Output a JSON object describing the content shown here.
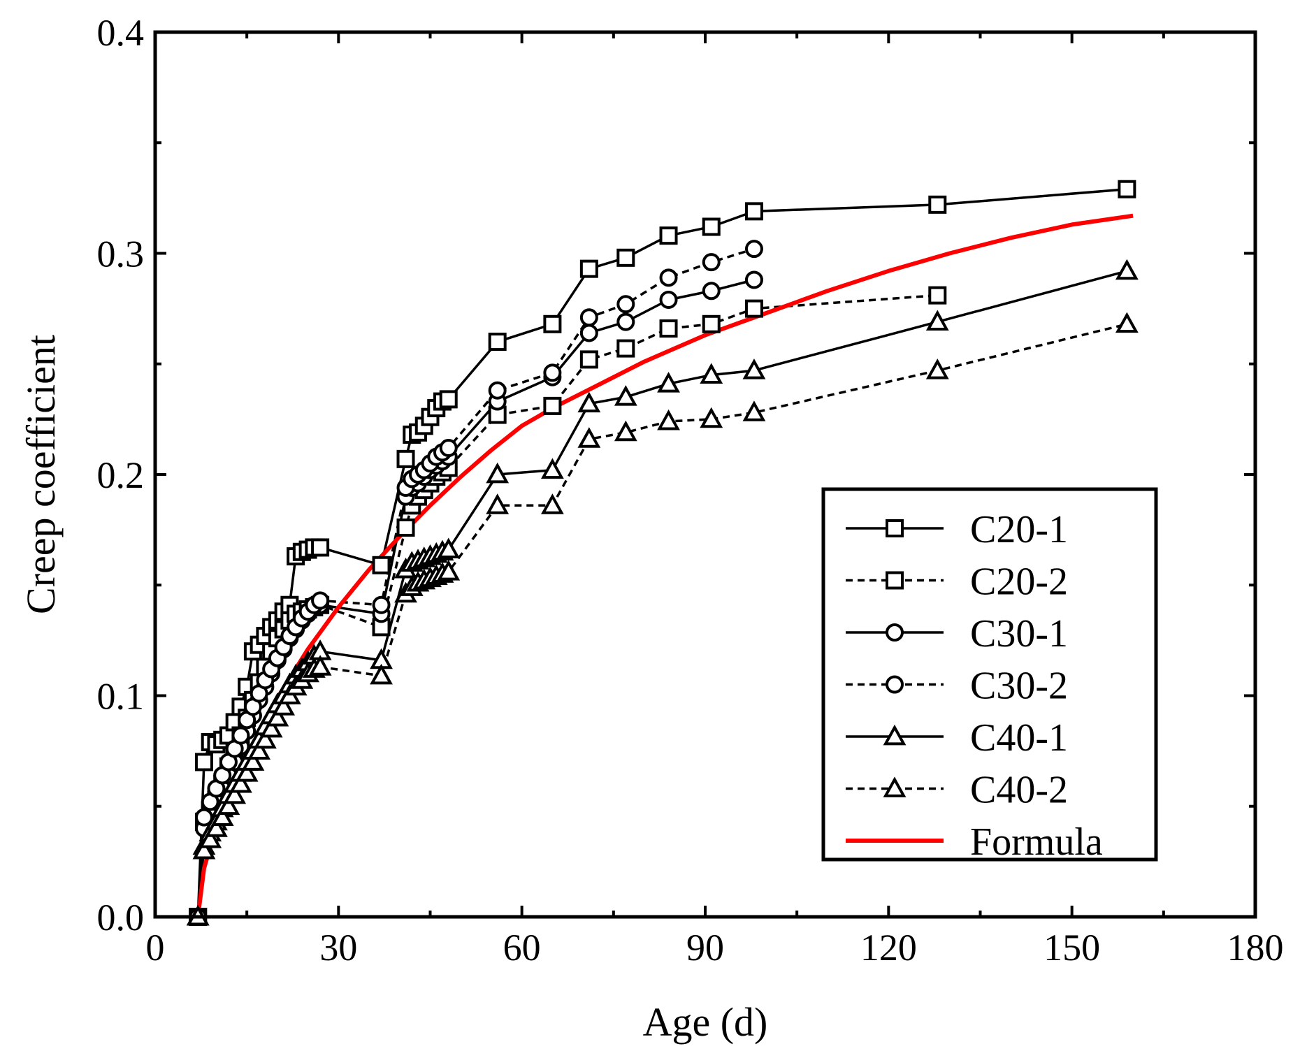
{
  "chart_data": {
    "type": "line",
    "title": "",
    "xlabel": "Age (d)",
    "ylabel": "Creep coefficient",
    "xlim": [
      0,
      180
    ],
    "ylim": [
      0,
      0.4
    ],
    "xticks": [
      0,
      30,
      60,
      90,
      120,
      150,
      180
    ],
    "xtick_labels": [
      "0",
      "30",
      "60",
      "90",
      "120",
      "150",
      "180"
    ],
    "yticks": [
      0,
      0.1,
      0.2,
      0.3,
      0.4
    ],
    "ytick_labels": [
      "0.0",
      "0.1",
      "0.2",
      "0.3",
      "0.4"
    ],
    "grid": false,
    "legend_position": "lower-right",
    "series": [
      {
        "name": "C20-1",
        "marker": "square",
        "line": "solid",
        "color": "#000000",
        "x": [
          7,
          8,
          9,
          10,
          11,
          12,
          13,
          14,
          15,
          16,
          17,
          18,
          19,
          20,
          21,
          22,
          23,
          24,
          25,
          26,
          27,
          37,
          41,
          42,
          43,
          44,
          45,
          46,
          47,
          48,
          56,
          65,
          71,
          77,
          84,
          91,
          98,
          128,
          159
        ],
        "y": [
          0,
          0.07,
          0.079,
          0.078,
          0.08,
          0.082,
          0.088,
          0.095,
          0.104,
          0.12,
          0.123,
          0.127,
          0.131,
          0.134,
          0.138,
          0.141,
          0.163,
          0.165,
          0.166,
          0.167,
          0.167,
          0.159,
          0.207,
          0.218,
          0.219,
          0.222,
          0.226,
          0.23,
          0.233,
          0.234,
          0.26,
          0.268,
          0.293,
          0.298,
          0.308,
          0.312,
          0.319,
          0.322,
          0.329
        ]
      },
      {
        "name": "C20-2",
        "marker": "square",
        "line": "dashed",
        "color": "#000000",
        "x": [
          7,
          8,
          9,
          10,
          11,
          12,
          13,
          14,
          15,
          16,
          17,
          18,
          19,
          20,
          21,
          22,
          23,
          24,
          25,
          26,
          27,
          37,
          41,
          42,
          43,
          44,
          45,
          46,
          47,
          48,
          56,
          65,
          71,
          77,
          84,
          91,
          98,
          128
        ],
        "y": [
          0,
          0.043,
          0.048,
          0.053,
          0.06,
          0.068,
          0.075,
          0.082,
          0.09,
          0.098,
          0.106,
          0.113,
          0.12,
          0.126,
          0.13,
          0.134,
          0.137,
          0.138,
          0.139,
          0.14,
          0.141,
          0.131,
          0.176,
          0.186,
          0.19,
          0.193,
          0.196,
          0.199,
          0.201,
          0.203,
          0.227,
          0.231,
          0.252,
          0.257,
          0.266,
          0.268,
          0.275,
          0.281
        ]
      },
      {
        "name": "C30-1",
        "marker": "circle",
        "line": "solid",
        "color": "#000000",
        "x": [
          7,
          8,
          9,
          10,
          11,
          12,
          13,
          14,
          15,
          16,
          17,
          18,
          19,
          20,
          21,
          22,
          23,
          24,
          25,
          26,
          27,
          37,
          41,
          42,
          43,
          44,
          45,
          46,
          47,
          48,
          56,
          65,
          71,
          77,
          84,
          91,
          98
        ],
        "y": [
          0,
          0.04,
          0.046,
          0.052,
          0.058,
          0.064,
          0.07,
          0.077,
          0.084,
          0.091,
          0.098,
          0.104,
          0.11,
          0.116,
          0.121,
          0.126,
          0.13,
          0.134,
          0.137,
          0.14,
          0.141,
          0.137,
          0.19,
          0.194,
          0.196,
          0.199,
          0.202,
          0.204,
          0.206,
          0.208,
          0.233,
          0.244,
          0.264,
          0.269,
          0.279,
          0.283,
          0.288
        ]
      },
      {
        "name": "C30-2",
        "marker": "circle",
        "line": "dashed",
        "color": "#000000",
        "x": [
          7,
          8,
          9,
          10,
          11,
          12,
          13,
          14,
          15,
          16,
          17,
          18,
          19,
          20,
          21,
          22,
          23,
          24,
          25,
          26,
          27,
          37,
          41,
          42,
          43,
          44,
          45,
          46,
          47,
          48,
          56,
          65,
          71,
          77,
          84,
          91,
          98
        ],
        "y": [
          0,
          0.045,
          0.052,
          0.058,
          0.064,
          0.07,
          0.076,
          0.082,
          0.089,
          0.095,
          0.101,
          0.107,
          0.112,
          0.117,
          0.122,
          0.127,
          0.131,
          0.135,
          0.138,
          0.141,
          0.143,
          0.141,
          0.194,
          0.198,
          0.2,
          0.202,
          0.205,
          0.208,
          0.21,
          0.212,
          0.238,
          0.246,
          0.271,
          0.277,
          0.289,
          0.296,
          0.302
        ]
      },
      {
        "name": "C40-1",
        "marker": "triangle",
        "line": "solid",
        "color": "#000000",
        "x": [
          7,
          8,
          9,
          10,
          11,
          12,
          13,
          14,
          15,
          16,
          17,
          18,
          19,
          20,
          21,
          22,
          23,
          24,
          25,
          26,
          27,
          37,
          41,
          42,
          43,
          44,
          45,
          46,
          47,
          48,
          56,
          65,
          71,
          77,
          84,
          91,
          98,
          128,
          159
        ],
        "y": [
          0,
          0.032,
          0.038,
          0.043,
          0.049,
          0.055,
          0.06,
          0.065,
          0.07,
          0.075,
          0.08,
          0.086,
          0.091,
          0.096,
          0.1,
          0.105,
          0.109,
          0.112,
          0.115,
          0.118,
          0.12,
          0.116,
          0.157,
          0.16,
          0.161,
          0.162,
          0.163,
          0.164,
          0.165,
          0.166,
          0.2,
          0.202,
          0.232,
          0.235,
          0.241,
          0.245,
          0.247,
          0.269,
          0.292
        ]
      },
      {
        "name": "C40-2",
        "marker": "triangle",
        "line": "dashed",
        "color": "#000000",
        "x": [
          7,
          8,
          9,
          10,
          11,
          12,
          13,
          14,
          15,
          16,
          17,
          18,
          19,
          20,
          21,
          22,
          23,
          24,
          25,
          26,
          27,
          37,
          41,
          42,
          43,
          44,
          45,
          46,
          47,
          48,
          56,
          65,
          71,
          77,
          84,
          91,
          98,
          128,
          159
        ],
        "y": [
          0,
          0.03,
          0.035,
          0.04,
          0.045,
          0.05,
          0.055,
          0.06,
          0.065,
          0.07,
          0.075,
          0.08,
          0.085,
          0.09,
          0.095,
          0.1,
          0.104,
          0.107,
          0.11,
          0.112,
          0.113,
          0.109,
          0.146,
          0.149,
          0.151,
          0.152,
          0.153,
          0.154,
          0.155,
          0.156,
          0.186,
          0.186,
          0.216,
          0.219,
          0.224,
          0.225,
          0.228,
          0.247,
          0.268
        ]
      },
      {
        "name": "Formula",
        "marker": "none",
        "line": "solid",
        "color": "#ff0000",
        "x": [
          7,
          8,
          10,
          12,
          15,
          20,
          25,
          30,
          35,
          40,
          45,
          50,
          55,
          60,
          65,
          70,
          80,
          90,
          100,
          110,
          120,
          130,
          140,
          150,
          160
        ],
        "y": [
          0,
          0.022,
          0.041,
          0.055,
          0.073,
          0.099,
          0.121,
          0.14,
          0.157,
          0.172,
          0.186,
          0.199,
          0.211,
          0.222,
          0.23,
          0.237,
          0.251,
          0.263,
          0.273,
          0.283,
          0.292,
          0.3,
          0.307,
          0.313,
          0.317
        ]
      }
    ]
  }
}
